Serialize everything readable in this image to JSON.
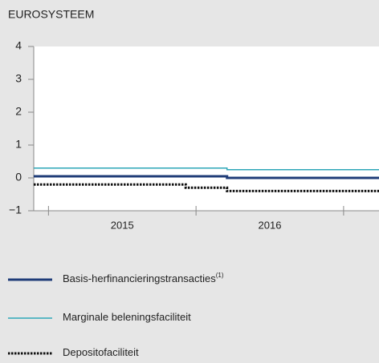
{
  "chart_data": {
    "type": "line",
    "title": "EUROSYSTEEM",
    "xlim": [
      2014.9,
      2017.24
    ],
    "xticks": [
      2015,
      2016,
      2017
    ],
    "year_labels": [
      "2015",
      "2016"
    ],
    "ylim": [
      -1,
      4
    ],
    "yticks": [
      {
        "value": 4,
        "label": "4"
      },
      {
        "value": 3,
        "label": "3"
      },
      {
        "value": 2,
        "label": "2"
      },
      {
        "value": 1,
        "label": "1"
      },
      {
        "value": 0,
        "label": "0"
      },
      {
        "value": -1,
        "label": "−1"
      }
    ],
    "step": "post",
    "series": [
      {
        "name": "Basis-herfinancieringstransacties",
        "footnote": "(1)",
        "color": "#1f3c78",
        "style": "solid",
        "width": 3,
        "x": [
          2014.9,
          2016.21,
          2017.24
        ],
        "values": [
          0.05,
          0,
          0
        ]
      },
      {
        "name": "Marginale beleningsfaciliteit",
        "color": "#2ea7b8",
        "style": "solid",
        "width": 1.5,
        "x": [
          2014.9,
          2016.21,
          2017.24
        ],
        "values": [
          0.3,
          0.25,
          0.25
        ]
      },
      {
        "name": "Depositofaciliteit",
        "color": "#111111",
        "style": "dotted",
        "width": 3,
        "x": [
          2014.9,
          2015.93,
          2016.21,
          2017.24
        ],
        "values": [
          -0.2,
          -0.3,
          -0.4,
          -0.4
        ]
      }
    ]
  }
}
